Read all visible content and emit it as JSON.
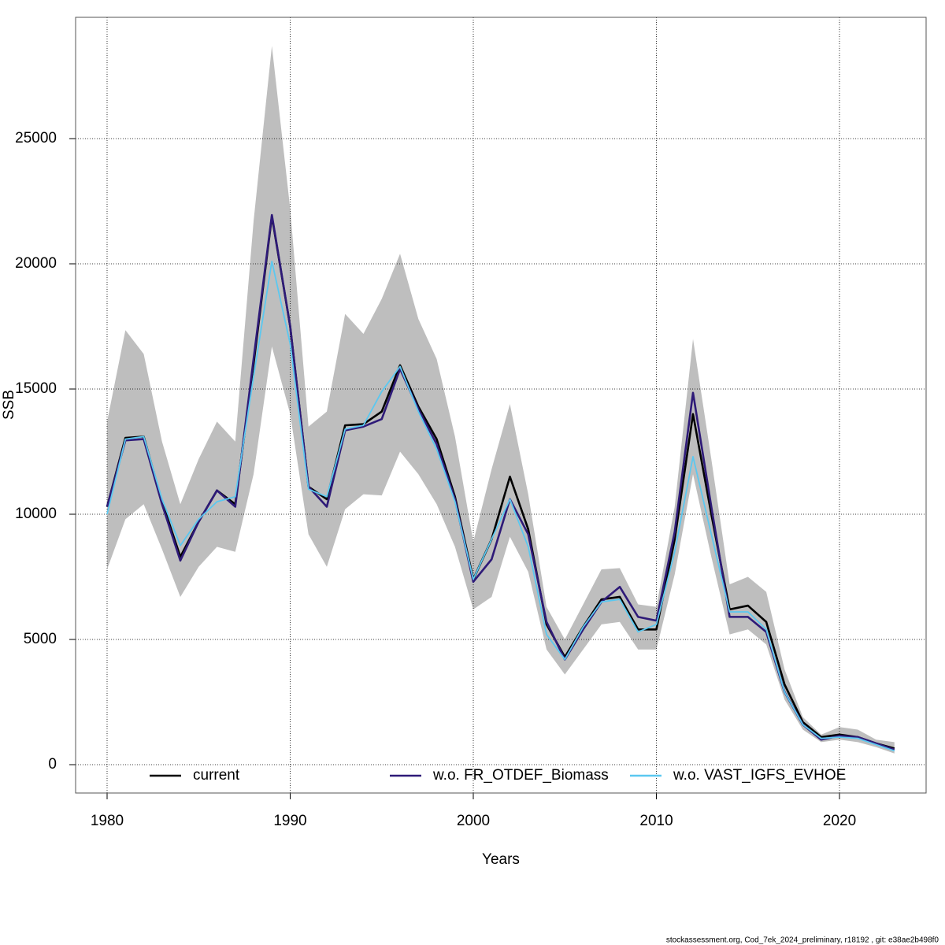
{
  "chart_data": {
    "type": "line",
    "xlabel": "Years",
    "ylabel": "SSB",
    "footer": "stockassessment.org, Cod_7ek_2024_preliminary, r18192 , git: e38ae2b498f0",
    "x": [
      1980,
      1981,
      1982,
      1983,
      1984,
      1985,
      1986,
      1987,
      1988,
      1989,
      1990,
      1991,
      1992,
      1993,
      1994,
      1995,
      1996,
      1997,
      1998,
      1999,
      2000,
      2001,
      2002,
      2003,
      2004,
      2005,
      2006,
      2007,
      2008,
      2009,
      2010,
      2011,
      2012,
      2013,
      2014,
      2015,
      2016,
      2017,
      2018,
      2019,
      2020,
      2021,
      2022,
      2023
    ],
    "band": {
      "color": "#bebebe",
      "upper": [
        13700,
        17350,
        16400,
        12900,
        10400,
        12200,
        13700,
        12900,
        21700,
        28700,
        22200,
        13500,
        14100,
        18000,
        17200,
        18600,
        20400,
        17800,
        16200,
        13100,
        8900,
        11800,
        14400,
        10800,
        6300,
        5000,
        6400,
        7800,
        7850,
        6400,
        6300,
        10300,
        17000,
        12200,
        7200,
        7500,
        6900,
        3800,
        1900,
        1200,
        1500,
        1400,
        1000,
        900
      ],
      "lower": [
        7800,
        9800,
        10400,
        8600,
        6700,
        7900,
        8700,
        8500,
        11600,
        16700,
        14000,
        9200,
        7900,
        10200,
        10800,
        10750,
        12500,
        11600,
        10400,
        8700,
        6200,
        6700,
        9100,
        7700,
        4600,
        3600,
        4600,
        5600,
        5700,
        4600,
        4600,
        7600,
        11600,
        8300,
        5200,
        5400,
        4800,
        2600,
        1400,
        900,
        1000,
        900,
        700,
        450
      ]
    },
    "series": [
      {
        "name": "current",
        "color": "#000000",
        "values": [
          10300,
          13050,
          13100,
          10500,
          8300,
          9700,
          10950,
          10400,
          16000,
          21900,
          17500,
          11100,
          10600,
          13550,
          13600,
          14100,
          15950,
          14300,
          13000,
          10700,
          7400,
          9000,
          11500,
          9400,
          5600,
          4300,
          5500,
          6600,
          6700,
          5400,
          5400,
          9000,
          14000,
          10000,
          6200,
          6350,
          5700,
          3200,
          1700,
          1100,
          1200,
          1100,
          850,
          650
        ]
      },
      {
        "name": "w.o. FR_OTDEF_Biomass",
        "color": "#2e1a78",
        "values": [
          10300,
          12950,
          13000,
          10400,
          8150,
          9700,
          10950,
          10300,
          16200,
          21950,
          17500,
          11100,
          10300,
          13350,
          13500,
          13800,
          15800,
          14200,
          12800,
          10600,
          7300,
          8200,
          10600,
          9200,
          5700,
          4200,
          5400,
          6500,
          7100,
          5900,
          5750,
          9300,
          14850,
          10300,
          5900,
          5900,
          5300,
          2900,
          1600,
          1000,
          1150,
          1100,
          850,
          600
        ]
      },
      {
        "name": "w.o. VAST_IGFS_EVHOE",
        "color": "#5bc8f0",
        "values": [
          10000,
          13000,
          13100,
          10600,
          8750,
          9800,
          10500,
          10700,
          15500,
          20100,
          16800,
          11000,
          10700,
          13400,
          13550,
          14900,
          15900,
          14100,
          12600,
          10500,
          7400,
          9000,
          10600,
          8700,
          5200,
          4200,
          5500,
          6500,
          6600,
          5300,
          5600,
          8500,
          12300,
          9200,
          6100,
          6100,
          5400,
          2900,
          1600,
          1050,
          1100,
          1050,
          800,
          550
        ]
      }
    ],
    "xlim": [
      1978.28,
      2024.73
    ],
    "ylim": [
      -1132,
      29843
    ],
    "xticks": [
      1980,
      1990,
      2000,
      2010,
      2020
    ],
    "yticks": [
      0,
      5000,
      10000,
      15000,
      20000,
      25000
    ],
    "grid": true,
    "legend": "bottom"
  }
}
